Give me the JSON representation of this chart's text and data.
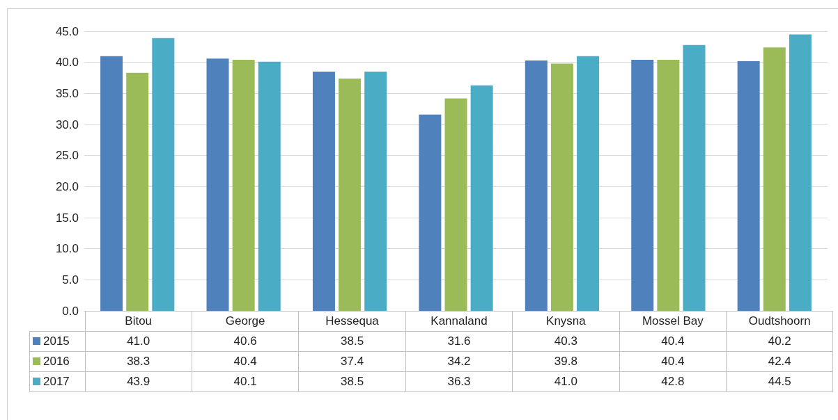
{
  "chart_data": {
    "type": "bar",
    "categories": [
      "Bitou",
      "George",
      "Hessequa",
      "Kannaland",
      "Knysna",
      "Mossel Bay",
      "Oudtshoorn"
    ],
    "series": [
      {
        "name": "2015",
        "color": "#4f81bd",
        "values": [
          41.0,
          40.6,
          38.5,
          31.6,
          40.3,
          40.4,
          40.2
        ],
        "value_labels": [
          "41.0",
          "40.6",
          "38.5",
          "31.6",
          "40.3",
          "40.4",
          "40.2"
        ]
      },
      {
        "name": "2016",
        "color": "#9bbb59",
        "values": [
          38.3,
          40.4,
          37.4,
          34.2,
          39.8,
          40.4,
          42.4
        ],
        "value_labels": [
          "38.3",
          "40.4",
          "37.4",
          "34.2",
          "39.8",
          "40.4",
          "42.4"
        ]
      },
      {
        "name": "2017",
        "color": "#4bacc6",
        "values": [
          43.9,
          40.1,
          38.5,
          36.3,
          41.0,
          42.8,
          44.5
        ],
        "value_labels": [
          "43.9",
          "40.1",
          "38.5",
          "36.3",
          "41.0",
          "42.8",
          "44.5"
        ]
      }
    ],
    "ylim": [
      0,
      45
    ],
    "yticks": [
      {
        "value": 0,
        "label": "0.0"
      },
      {
        "value": 5,
        "label": "5.0"
      },
      {
        "value": 10,
        "label": "10.0"
      },
      {
        "value": 15,
        "label": "15.0"
      },
      {
        "value": 20,
        "label": "20.0"
      },
      {
        "value": 25,
        "label": "25.0"
      },
      {
        "value": 30,
        "label": "30.0"
      },
      {
        "value": 35,
        "label": "35.0"
      },
      {
        "value": 40,
        "label": "40.0"
      },
      {
        "value": 45,
        "label": "45.0"
      }
    ],
    "grid": "y",
    "legend": "bottom"
  }
}
